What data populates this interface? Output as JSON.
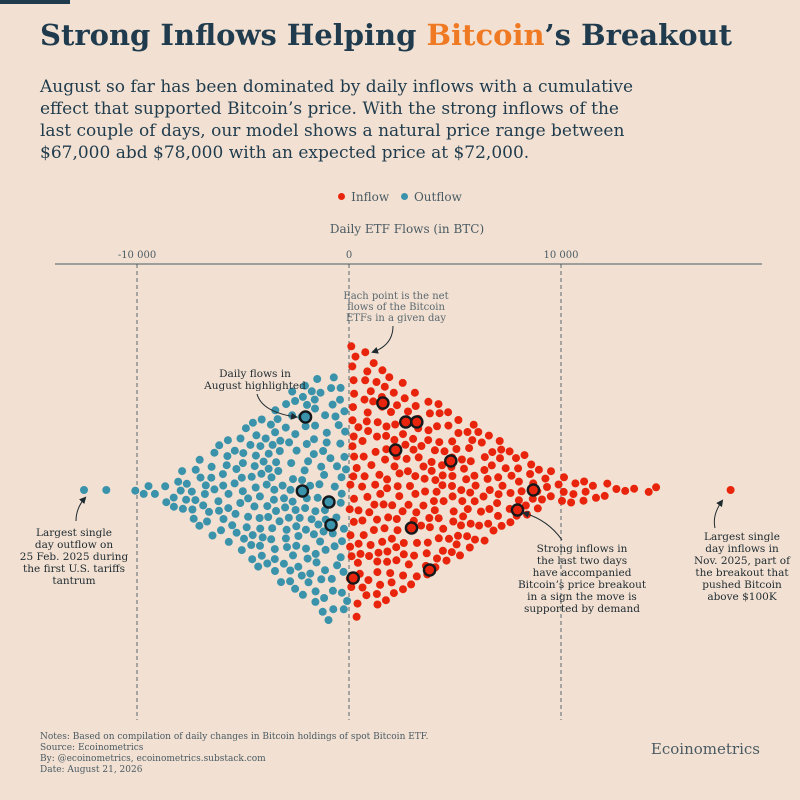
{
  "header": {
    "title_pre": "Strong Inflows Helping ",
    "title_accent": "Bitcoin",
    "title_post": "’s Breakout",
    "subtitle": "August so far has been dominated by daily inflows with a cumulative effect that supported Bitcoin’s price. With the strong inflows of the last couple of days, our model shows a natural price range between $67,000 abd $78,000 with an expected price at $72,000."
  },
  "colors": {
    "background": "#f2e1d2",
    "inflow": "#e8250c",
    "outflow": "#3a93aa",
    "text": "#1f3b4d",
    "accent": "#f07a24",
    "annotation": "#1f2a30"
  },
  "chart_data": {
    "type": "scatter",
    "subtype": "beeswarm",
    "title": "Daily ETF Flows (in BTC)",
    "axis_position": "top",
    "x_ticks": [
      {
        "value": -10000,
        "label": "-10 000"
      },
      {
        "value": 0,
        "label": "0"
      },
      {
        "value": 10000,
        "label": "10 000"
      }
    ],
    "xlim": [
      -14000,
      19500
    ],
    "legend": {
      "placement": "top-center",
      "items": [
        {
          "label": "Inflow",
          "color": "#e8250c"
        },
        {
          "label": "Outflow",
          "color": "#3a93aa"
        }
      ]
    },
    "approx_points": {
      "inflow": 460,
      "outflow": 300
    },
    "extremes": {
      "largest_outflow": -12500,
      "largest_inflow": 18000
    },
    "highlighted_august_flows": [
      -2050,
      -2200,
      -950,
      -850,
      1600,
      2680,
      3200,
      2200,
      4800,
      8700,
      7950,
      2950,
      3800,
      200
    ],
    "annotations": [
      {
        "id": "each-point",
        "lines": [
          "Each point is the net",
          "flows of the Bitcoin",
          "ETFs in a given day"
        ]
      },
      {
        "id": "daily-flows-august",
        "lines": [
          "Daily flows in",
          "August highlighted"
        ]
      },
      {
        "id": "largest-outflow",
        "lines": [
          "Largest single",
          "day outflow on",
          "25 Feb. 2025 during",
          "the first U.S. tariffs",
          "tantrum"
        ]
      },
      {
        "id": "strong-inflows",
        "lines": [
          "Strong inflows in",
          "the last two days",
          "have accompanied",
          "Bitcoin’s price breakout",
          "in a sign the move is",
          "supported by demand"
        ]
      },
      {
        "id": "largest-inflow",
        "lines": [
          "Largest single",
          "day inflows in",
          "Nov. 2025, part of",
          "the breakout that",
          "pushed Bitcoin",
          "above $100K"
        ]
      }
    ]
  },
  "footer": {
    "notes": [
      "Notes: Based on compilation of daily changes in Bitcoin holdings of spot Bitcoin ETF.",
      "Source: Ecoinometrics",
      "By: @ecoinometrics, ecoinometrics.substack.com",
      "Date: August 21, 2026"
    ],
    "brand": "Ecoinometrics"
  }
}
